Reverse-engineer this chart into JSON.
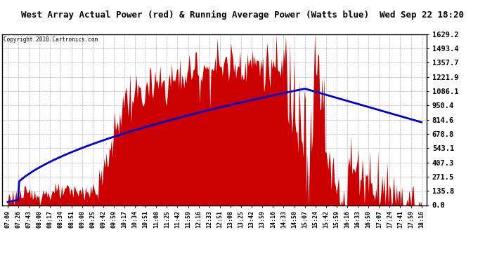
{
  "title": "West Array Actual Power (red) & Running Average Power (Watts blue)  Wed Sep 22 18:20",
  "copyright": "Copyright 2010 Cartronics.com",
  "y_max": 1629.2,
  "y_min": 0.0,
  "y_ticks": [
    0.0,
    135.8,
    271.5,
    407.3,
    543.1,
    678.8,
    814.6,
    950.4,
    1086.1,
    1221.9,
    1357.7,
    1493.4,
    1629.2
  ],
  "x_labels": [
    "07:09",
    "07:26",
    "07:43",
    "08:00",
    "08:17",
    "08:34",
    "08:51",
    "09:08",
    "09:25",
    "09:42",
    "09:59",
    "10:17",
    "10:34",
    "10:51",
    "11:08",
    "11:25",
    "11:42",
    "11:59",
    "12:16",
    "12:33",
    "12:51",
    "13:08",
    "13:25",
    "13:42",
    "13:59",
    "14:16",
    "14:33",
    "14:50",
    "15:07",
    "15:24",
    "15:42",
    "15:59",
    "16:16",
    "16:33",
    "16:50",
    "17:07",
    "17:24",
    "17:41",
    "17:59",
    "18:16"
  ],
  "red_color": "#cc0000",
  "blue_color": "#0000cc",
  "bg_color": "#ffffff",
  "grid_color": "#aaaaaa",
  "title_bg": "#cccccc",
  "plot_bg": "#ffffff",
  "title_fontsize": 9.0,
  "copyright_fontsize": 5.5,
  "tick_fontsize": 7.5,
  "xtick_fontsize": 6.0
}
